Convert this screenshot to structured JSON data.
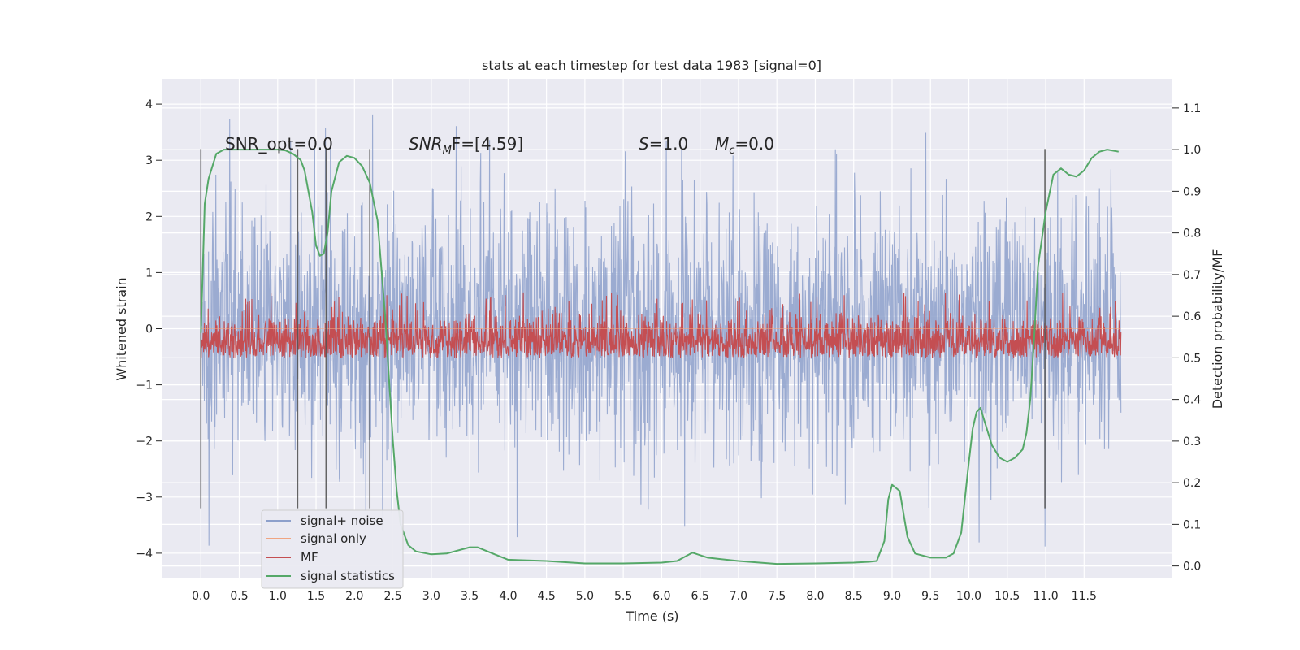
{
  "chart_data": {
    "type": "line",
    "title": "stats at each timestep for test data 1983 [signal=0]",
    "xlabel": "Time (s)",
    "ylabel": "Whitened strain",
    "y2label": "Detection probability/MF",
    "xlim": [
      -0.5,
      12.65
    ],
    "ylim": [
      -4.45,
      4.45
    ],
    "y2lim": [
      -0.03,
      1.17
    ],
    "x_ticks": [
      0.0,
      0.5,
      1.0,
      1.5,
      2.0,
      2.5,
      3.0,
      3.5,
      4.0,
      4.5,
      5.0,
      5.5,
      6.0,
      6.5,
      7.0,
      7.5,
      8.0,
      8.5,
      9.0,
      9.5,
      10.0,
      10.5,
      11.0,
      11.5
    ],
    "x_tick_labels": [
      "0.0",
      "0.5",
      "1.0",
      "1.5",
      "2.0",
      "2.5",
      "3.0",
      "3.5",
      "4.0",
      "4.5",
      "5.0",
      "5.5",
      "6.0",
      "6.5",
      "7.0",
      "7.5",
      "8.0",
      "8.5",
      "9.0",
      "9.5",
      "10.0",
      "10.5",
      "11.0",
      "11.5"
    ],
    "y_ticks": [
      4,
      3,
      2,
      1,
      0,
      -1,
      -2,
      -3,
      -4
    ],
    "y_tick_labels": [
      "4",
      "3",
      "2",
      "1",
      "0",
      "−1",
      "−2",
      "−3",
      "−4"
    ],
    "y2_ticks": [
      1.1,
      1.0,
      0.9,
      0.8,
      0.7,
      0.6,
      0.5,
      0.4,
      0.3,
      0.2,
      0.1,
      0.0
    ],
    "y2_tick_labels": [
      "1.1",
      "1.0",
      "0.9",
      "0.8",
      "0.7",
      "0.6",
      "0.5",
      "0.4",
      "0.3",
      "0.2",
      "0.1",
      "0.0"
    ],
    "grid": true,
    "legend_position": "lower-left",
    "annotations": {
      "snr_opt": "SNR_opt=0.0",
      "snr_mf_prefix": "SNR",
      "snr_mf_sub": "M",
      "snr_mf_suffix": "F=[4.59]",
      "s_prefix": "S",
      "s_value": "=1.0",
      "mc_prefix": "M",
      "mc_sub": "c",
      "mc_value": "=0.0"
    },
    "vertical_markers": [
      0.0,
      1.26,
      1.63,
      2.2,
      10.99
    ],
    "marker_range": [
      -3.2,
      3.2
    ],
    "series": [
      {
        "name": "signal+ noise",
        "color": "#8da0cb",
        "kind": "noise",
        "x_range": [
          0.0,
          11.98
        ],
        "typical_range": [
          -2.0,
          2.0
        ],
        "extremes": [
          -4.05,
          4.1
        ]
      },
      {
        "name": "signal only",
        "color": "#f0a582",
        "kind": "flat",
        "x_range": [
          0.0,
          11.98
        ],
        "value": 0.0
      },
      {
        "name": "MF",
        "color": "#c44e52",
        "kind": "noise_positive",
        "axis": "right",
        "x_range": [
          0.0,
          11.98
        ],
        "typical_range": [
          0.5,
          0.62
        ],
        "extremes": [
          0.5,
          0.66
        ]
      },
      {
        "name": "signal statistics",
        "color": "#55a868",
        "kind": "line",
        "axis": "right",
        "x": [
          0.0,
          0.05,
          0.1,
          0.2,
          0.3,
          0.5,
          0.8,
          1.0,
          1.1,
          1.2,
          1.3,
          1.35,
          1.45,
          1.5,
          1.55,
          1.6,
          1.65,
          1.7,
          1.8,
          1.9,
          2.0,
          2.1,
          2.2,
          2.3,
          2.4,
          2.45,
          2.5,
          2.55,
          2.6,
          2.7,
          2.8,
          3.0,
          3.2,
          3.5,
          3.6,
          3.8,
          4.0,
          4.5,
          5.0,
          5.5,
          6.0,
          6.2,
          6.4,
          6.6,
          7.0,
          7.5,
          8.0,
          8.5,
          8.7,
          8.8,
          8.9,
          8.95,
          9.0,
          9.1,
          9.2,
          9.3,
          9.5,
          9.7,
          9.8,
          9.9,
          10.0,
          10.05,
          10.1,
          10.15,
          10.2,
          10.3,
          10.4,
          10.5,
          10.6,
          10.7,
          10.75,
          10.8,
          10.85,
          10.9,
          11.0,
          11.1,
          11.2,
          11.3,
          11.4,
          11.5,
          11.6,
          11.7,
          11.8,
          11.95
        ],
        "y": [
          0.56,
          0.87,
          0.93,
          0.99,
          1.0,
          1.0,
          1.0,
          1.0,
          0.998,
          0.99,
          0.975,
          0.95,
          0.85,
          0.77,
          0.745,
          0.75,
          0.8,
          0.9,
          0.97,
          0.985,
          0.98,
          0.96,
          0.92,
          0.83,
          0.6,
          0.45,
          0.3,
          0.18,
          0.1,
          0.05,
          0.035,
          0.028,
          0.03,
          0.045,
          0.045,
          0.03,
          0.015,
          0.012,
          0.006,
          0.006,
          0.008,
          0.012,
          0.032,
          0.02,
          0.012,
          0.005,
          0.006,
          0.008,
          0.01,
          0.012,
          0.06,
          0.16,
          0.195,
          0.18,
          0.07,
          0.03,
          0.02,
          0.02,
          0.03,
          0.08,
          0.25,
          0.33,
          0.37,
          0.38,
          0.35,
          0.29,
          0.26,
          0.25,
          0.26,
          0.28,
          0.32,
          0.4,
          0.55,
          0.72,
          0.85,
          0.94,
          0.955,
          0.94,
          0.935,
          0.95,
          0.98,
          0.995,
          1.0,
          0.995
        ]
      }
    ]
  }
}
